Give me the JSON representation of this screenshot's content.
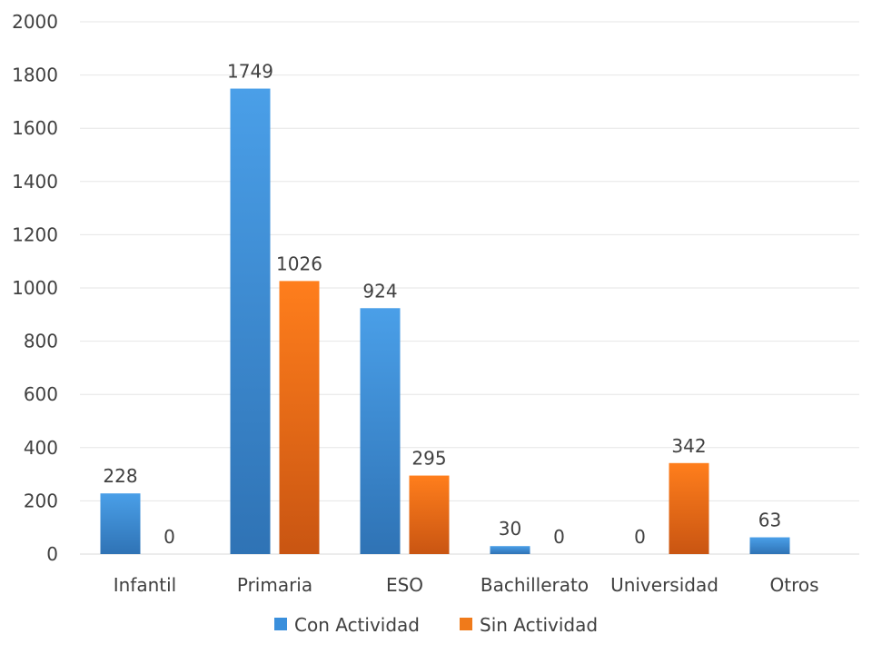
{
  "chart_data": {
    "type": "bar",
    "categories": [
      "Infantil",
      "Primaria",
      "ESO",
      "Bachillerato",
      "Universidad",
      "Otros"
    ],
    "series": [
      {
        "name": "Con Actividad",
        "values": [
          228,
          1749,
          924,
          30,
          0,
          63
        ],
        "color": "#3a8fdc",
        "labels": [
          "228",
          "1749",
          "924",
          "30",
          "0",
          "63"
        ]
      },
      {
        "name": "Sin Actividad",
        "values": [
          0,
          1026,
          295,
          0,
          342,
          null
        ],
        "color": "#f07a1a",
        "labels": [
          "0",
          "1026",
          "295",
          "0",
          "342",
          ""
        ]
      }
    ],
    "y_ticks": [
      "0",
      "200",
      "400",
      "600",
      "800",
      "1000",
      "1200",
      "1400",
      "1600",
      "1800",
      "2000"
    ],
    "ylim": [
      0,
      2000
    ],
    "grid": true,
    "legend_position": "bottom"
  }
}
